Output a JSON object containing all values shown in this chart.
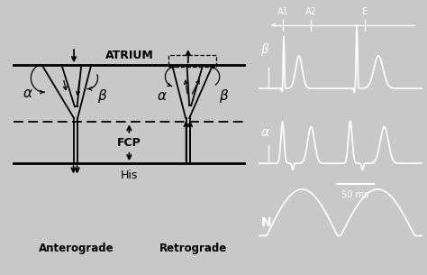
{
  "bg_color": "#c8c8c8",
  "left_panel_bg": "#f5f5f5",
  "right_panel_bg": "#000000",
  "atrium_label": "ATRIUM",
  "fcp_label": "FCP",
  "his_label": "His",
  "anterograde_label": "Anterograde",
  "retrograde_label": "Retrograde",
  "alpha_label": "α",
  "beta_label": "β",
  "a1_label": "A1",
  "a2_label": "A2",
  "e_label": "E",
  "beta_trace_label": "β",
  "alpha_trace_label": "α",
  "n_label": "N",
  "scale_label": "50 ms"
}
